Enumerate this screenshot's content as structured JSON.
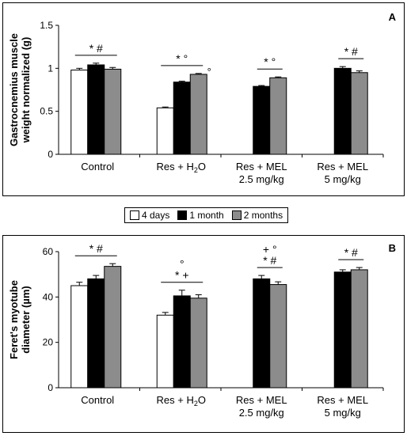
{
  "legend": [
    {
      "name": "4 days",
      "color": "#ffffff"
    },
    {
      "name": "1 month",
      "color": "#000000"
    },
    {
      "name": "2 months",
      "color": "#8c8c8c"
    }
  ],
  "chart_data": [
    {
      "type": "bar",
      "panel_label": "A",
      "ylabel_lines": [
        "Gastrocnemius muscle",
        "weight normalized (g)"
      ],
      "ylim": [
        0,
        1.5
      ],
      "yticks": [
        "0",
        "0.5",
        "1",
        "1.5"
      ],
      "grid": false,
      "groups": [
        {
          "label_lines": [
            "Control"
          ],
          "values": [
            0.98,
            1.04,
            0.99
          ],
          "errors": [
            0.02,
            0.02,
            0.02
          ],
          "annotation": "*  #"
        },
        {
          "label_lines": [
            "Res + H₂O"
          ],
          "values": [
            0.54,
            0.84,
            0.93
          ],
          "errors": [
            0.01,
            0.01,
            0.01
          ],
          "annotation": "*  °",
          "extra_mark": "°"
        },
        {
          "label_lines": [
            "Res + MEL",
            "2.5 mg/kg"
          ],
          "values": [
            null,
            0.79,
            0.89
          ],
          "errors": [
            null,
            0.01,
            0.01
          ],
          "annotation": "*  °"
        },
        {
          "label_lines": [
            "Res + MEL",
            "5 mg/kg"
          ],
          "values": [
            null,
            1.0,
            0.95
          ],
          "errors": [
            null,
            0.02,
            0.02
          ],
          "annotation": "*  #"
        }
      ]
    },
    {
      "type": "bar",
      "panel_label": "B",
      "ylabel_lines": [
        "Feret's myotube",
        "diameter (µm)"
      ],
      "ylim": [
        0,
        60
      ],
      "yticks": [
        "0",
        "20",
        "40",
        "60"
      ],
      "grid": false,
      "groups": [
        {
          "label_lines": [
            "Control"
          ],
          "values": [
            45,
            48,
            53.5
          ],
          "errors": [
            1.5,
            1.5,
            1.2
          ],
          "annotation": "*  #"
        },
        {
          "label_lines": [
            "Res + H₂O"
          ],
          "values": [
            32,
            40.5,
            39.5
          ],
          "errors": [
            1.2,
            2.5,
            1.5
          ],
          "annotation": "* +",
          "annotation_top": "°"
        },
        {
          "label_lines": [
            "Res + MEL",
            "2.5 mg/kg"
          ],
          "values": [
            null,
            48,
            45.5
          ],
          "errors": [
            null,
            1.5,
            1.2
          ],
          "annotation": "* #",
          "annotation_top": "+  °"
        },
        {
          "label_lines": [
            "Res + MEL",
            "5 mg/kg"
          ],
          "values": [
            null,
            51,
            52
          ],
          "errors": [
            null,
            1.0,
            1.0
          ],
          "annotation": "*  #"
        }
      ]
    }
  ]
}
